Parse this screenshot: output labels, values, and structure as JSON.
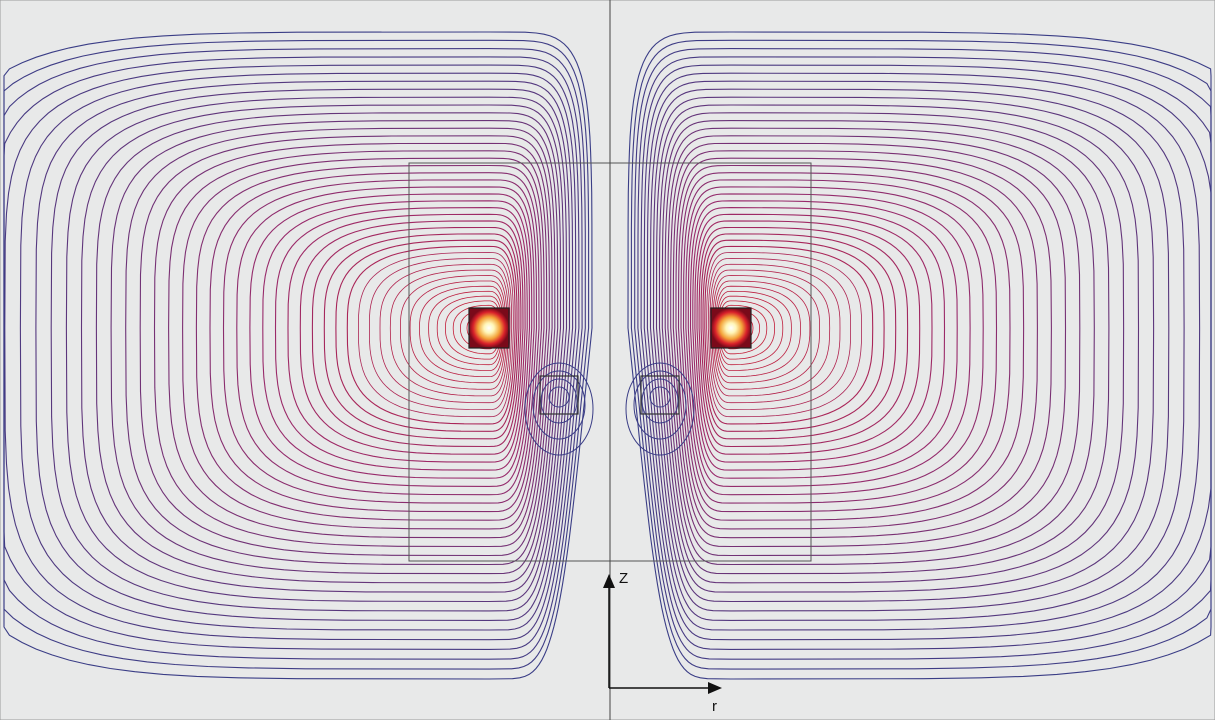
{
  "figure": {
    "axes": {
      "vertical_label": "Z",
      "horizontal_label": "r"
    }
  },
  "colors": {
    "background": "#e8e9e9",
    "frame": "#4a4a4a",
    "field_line_far": "#3a3d86",
    "field_line_mid": "#9a2a6a",
    "field_line_near": "#d01a2a",
    "hot_core": "#fff7b0"
  }
}
